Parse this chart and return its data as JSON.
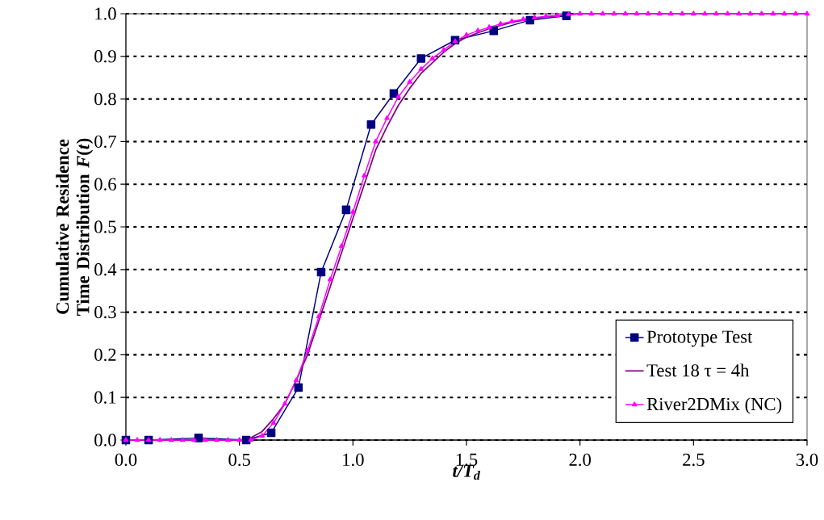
{
  "chart_data": {
    "type": "line",
    "xlabel": "t/T$_{d}$",
    "ylabel": "Cumulative Residence Time Distribution *F*(*t*)",
    "xlim": [
      0,
      3.0
    ],
    "ylim": [
      0,
      1.0
    ],
    "xticks": [
      {
        "value": 0,
        "label": "0.0"
      },
      {
        "value": 0.5,
        "label": "0.5"
      },
      {
        "value": 1.0,
        "label": "1.0"
      },
      {
        "value": 1.5,
        "label": "1.5"
      },
      {
        "value": 2.0,
        "label": "2.0"
      },
      {
        "value": 2.5,
        "label": "2.5"
      },
      {
        "value": 3.0,
        "label": "3.0"
      }
    ],
    "yticks": [
      {
        "value": 0,
        "label": "0.0"
      },
      {
        "value": 0.1,
        "label": "0.1"
      },
      {
        "value": 0.2,
        "label": "0.2"
      },
      {
        "value": 0.3,
        "label": "0.3"
      },
      {
        "value": 0.4,
        "label": "0.4"
      },
      {
        "value": 0.5,
        "label": "0.5"
      },
      {
        "value": 0.6,
        "label": "0.6"
      },
      {
        "value": 0.7,
        "label": "0.7"
      },
      {
        "value": 0.8,
        "label": "0.8"
      },
      {
        "value": 0.9,
        "label": "0.9"
      },
      {
        "value": 1.0,
        "label": "1.0"
      }
    ],
    "grid": "y",
    "legend": "bottom right",
    "series": [
      {
        "name": "Prototype Test",
        "color": "#000080",
        "marker": "square",
        "x": [
          0,
          0.1,
          0.32,
          0.53,
          0.64,
          0.76,
          0.86,
          0.97,
          1.08,
          1.18,
          1.3,
          1.45,
          1.62,
          1.78,
          1.94
        ],
        "values": [
          0,
          0,
          0.005,
          0,
          0.017,
          0.123,
          0.394,
          0.54,
          0.74,
          0.813,
          0.895,
          0.938,
          0.96,
          0.985,
          0.995
        ]
      },
      {
        "name": "Test 18 τ = 4h",
        "color": "#800080",
        "marker": "none",
        "x": [
          0,
          0.5,
          0.55,
          0.6,
          0.65,
          0.7,
          0.75,
          0.8,
          0.85,
          0.9,
          0.95,
          1.0,
          1.05,
          1.1,
          1.15,
          1.2,
          1.25,
          1.3,
          1.35,
          1.4,
          1.45,
          1.5,
          1.6,
          1.7,
          1.8,
          1.9,
          2.0,
          3.0
        ],
        "values": [
          0,
          0,
          0.005,
          0.02,
          0.05,
          0.085,
          0.14,
          0.2,
          0.28,
          0.36,
          0.44,
          0.52,
          0.6,
          0.68,
          0.735,
          0.785,
          0.825,
          0.86,
          0.885,
          0.91,
          0.93,
          0.945,
          0.965,
          0.98,
          0.99,
          0.995,
          1.0,
          1.0
        ]
      },
      {
        "name": "River2DMix (NC)",
        "color": "#ff00ff",
        "marker": "triangle",
        "x": [
          0,
          0.05,
          0.1,
          0.15,
          0.2,
          0.25,
          0.3,
          0.35,
          0.4,
          0.45,
          0.5,
          0.55,
          0.6,
          0.65,
          0.7,
          0.75,
          0.8,
          0.85,
          0.9,
          0.95,
          1.0,
          1.05,
          1.1,
          1.15,
          1.2,
          1.25,
          1.3,
          1.35,
          1.4,
          1.45,
          1.5,
          1.55,
          1.6,
          1.65,
          1.7,
          1.75,
          1.8,
          1.85,
          1.9,
          1.95,
          2.0,
          2.05,
          2.1,
          2.15,
          2.2,
          2.25,
          2.3,
          2.35,
          2.4,
          2.45,
          2.5,
          2.55,
          2.6,
          2.65,
          2.7,
          2.75,
          2.8,
          2.85,
          2.9,
          2.95,
          3.0
        ],
        "values": [
          0,
          0,
          0,
          0,
          0,
          0,
          0,
          0,
          0,
          0,
          0,
          0,
          0.01,
          0.04,
          0.085,
          0.14,
          0.21,
          0.29,
          0.377,
          0.455,
          0.535,
          0.62,
          0.7,
          0.755,
          0.805,
          0.84,
          0.87,
          0.895,
          0.915,
          0.935,
          0.95,
          0.96,
          0.968,
          0.976,
          0.982,
          0.987,
          0.991,
          0.994,
          0.996,
          0.998,
          1.0,
          1.0,
          1.0,
          1.0,
          1.0,
          1.0,
          1.0,
          1.0,
          1.0,
          1.0,
          1.0,
          1.0,
          1.0,
          1.0,
          1.0,
          1.0,
          1.0,
          1.0,
          1.0,
          1.0,
          1.0
        ]
      }
    ]
  }
}
